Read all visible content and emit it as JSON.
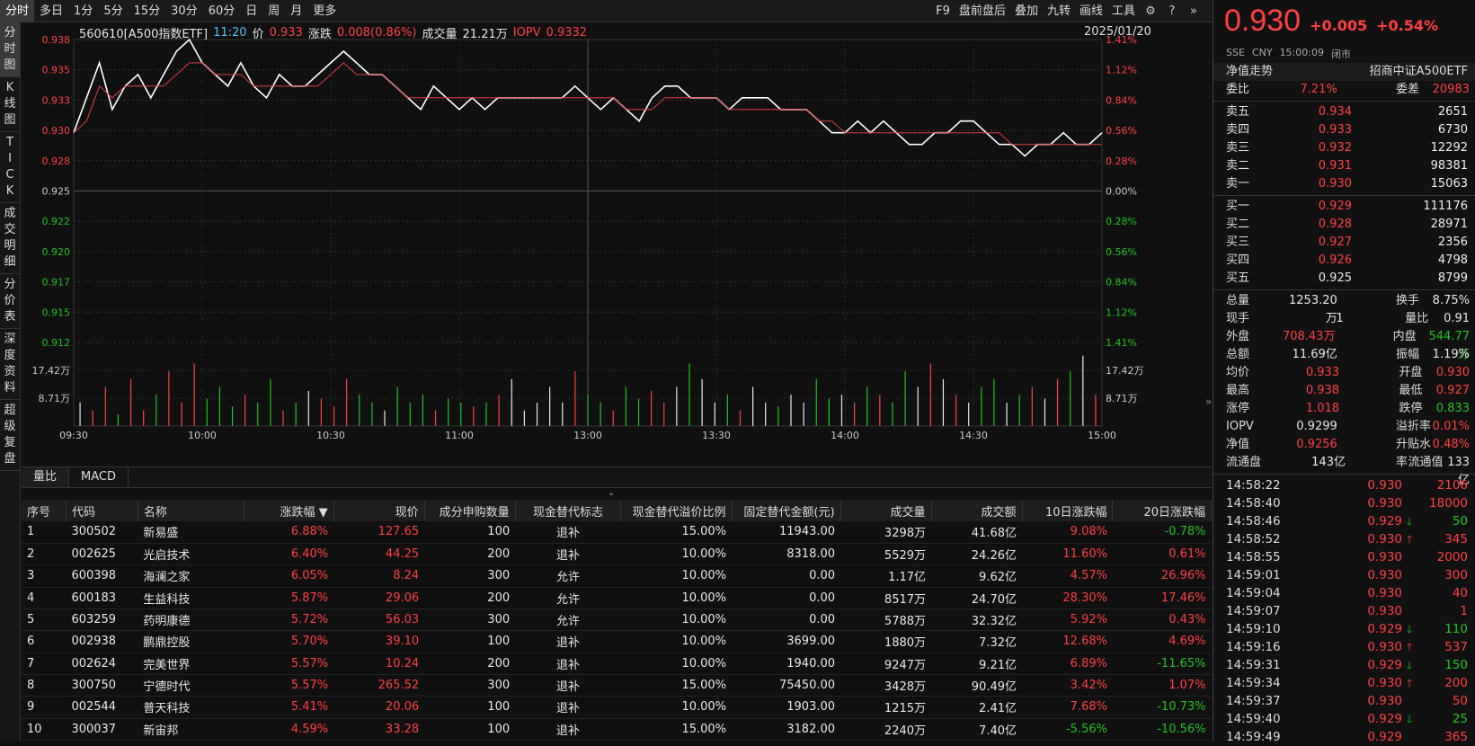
{
  "toolbar": {
    "periods": [
      "分时",
      "多日",
      "1分",
      "5分",
      "15分",
      "30分",
      "60分",
      "日",
      "周",
      "月",
      "更多"
    ],
    "tools": [
      "F9",
      "盘前盘后",
      "叠加",
      "九转",
      "画线",
      "工具"
    ]
  },
  "side_tabs": [
    "分时图",
    "K线图",
    "TICK",
    "成交明细",
    "分价表",
    "深度资料",
    "超级复盘"
  ],
  "info": {
    "code": "560610[A500指数ETF]",
    "time": "11:20",
    "price_label": "价",
    "price": "0.933",
    "chg_label": "涨跌",
    "chg": "0.008(0.86%)",
    "vol_label": "成交量",
    "vol": "21.21万",
    "iopv_label": "IOPV",
    "iopv": "0.9332",
    "date": "2025/01/20"
  },
  "chart_data": {
    "type": "line",
    "title": "",
    "xlabel": "",
    "ylabel": "",
    "price_ticks": [
      "0.938",
      "0.935",
      "0.933",
      "0.930",
      "0.928",
      "0.925",
      "0.922",
      "0.920",
      "0.917",
      "0.915",
      "0.912"
    ],
    "pct_ticks": [
      "1.41%",
      "1.12%",
      "0.84%",
      "0.56%",
      "0.28%",
      "0.00%",
      "0.28%",
      "0.56%",
      "0.84%",
      "1.12%",
      "1.41%"
    ],
    "vol_ticks": [
      "17.42万",
      "8.71万"
    ],
    "x_ticks": [
      "09:30",
      "10:00",
      "10:30",
      "11:00",
      "13:00",
      "13:30",
      "14:00",
      "14:30",
      "15:00"
    ],
    "ylim": [
      0.912,
      0.938
    ],
    "prev_close": 0.925,
    "series": [
      {
        "values": [
          0.93,
          0.933,
          0.936,
          0.932,
          0.934,
          0.935,
          0.933,
          0.935,
          0.937,
          0.938,
          0.936,
          0.935,
          0.934,
          0.936,
          0.934,
          0.933,
          0.935,
          0.934,
          0.934,
          0.935,
          0.936,
          0.937,
          0.936,
          0.935,
          0.935,
          0.934,
          0.933,
          0.932,
          0.934,
          0.933,
          0.932,
          0.933,
          0.932,
          0.933,
          0.933,
          0.933,
          0.933,
          0.933,
          0.933,
          0.934,
          0.933,
          0.932,
          0.933,
          0.932,
          0.931,
          0.933,
          0.934,
          0.934,
          0.933,
          0.933,
          0.933,
          0.932,
          0.933,
          0.933,
          0.933,
          0.932,
          0.932,
          0.932,
          0.931,
          0.93,
          0.93,
          0.931,
          0.93,
          0.931,
          0.93,
          0.929,
          0.929,
          0.93,
          0.93,
          0.931,
          0.931,
          0.93,
          0.929,
          0.929,
          0.928,
          0.929,
          0.929,
          0.93,
          0.929,
          0.929,
          0.93
        ]
      },
      {
        "values": [
          0.93,
          0.931,
          0.934,
          0.933,
          0.934,
          0.934,
          0.934,
          0.934,
          0.935,
          0.936,
          0.936,
          0.935,
          0.935,
          0.935,
          0.934,
          0.934,
          0.934,
          0.934,
          0.934,
          0.934,
          0.935,
          0.936,
          0.935,
          0.935,
          0.935,
          0.934,
          0.933,
          0.933,
          0.933,
          0.933,
          0.933,
          0.933,
          0.933,
          0.933,
          0.933,
          0.933,
          0.933,
          0.933,
          0.933,
          0.933,
          0.933,
          0.933,
          0.933,
          0.932,
          0.932,
          0.932,
          0.933,
          0.933,
          0.933,
          0.933,
          0.933,
          0.932,
          0.932,
          0.932,
          0.932,
          0.932,
          0.932,
          0.932,
          0.931,
          0.931,
          0.93,
          0.93,
          0.93,
          0.93,
          0.93,
          0.93,
          0.93,
          0.93,
          0.93,
          0.93,
          0.93,
          0.93,
          0.93,
          0.929,
          0.929,
          0.929,
          0.929,
          0.929,
          0.929,
          0.929,
          0.929
        ]
      }
    ],
    "volumes": [
      0.3,
      0.2,
      0.5,
      0.15,
      0.6,
      0.2,
      0.4,
      0.7,
      0.3,
      0.8,
      0.35,
      0.5,
      0.25,
      0.4,
      0.3,
      0.6,
      0.2,
      0.3,
      0.45,
      0.35,
      0.25,
      0.6,
      0.4,
      0.3,
      0.2,
      0.5,
      0.3,
      0.4,
      0.2,
      0.35,
      0.3,
      0.25,
      0.3,
      0.4,
      0.6,
      0.2,
      0.3,
      0.5,
      0.3,
      0.7,
      0.4,
      0.3,
      0.2,
      0.5,
      0.35,
      0.45,
      0.3,
      0.5,
      0.8,
      0.6,
      0.3,
      0.4,
      0.2,
      0.5,
      0.3,
      0.25,
      0.4,
      0.3,
      0.6,
      0.35,
      0.4,
      0.3,
      0.5,
      0.4,
      0.3,
      0.7,
      0.5,
      0.8,
      0.6,
      0.4,
      0.3,
      0.5,
      0.6,
      0.3,
      0.4,
      0.5,
      0.35,
      0.6,
      0.7,
      0.9,
      0.4
    ]
  },
  "indicator_tabs": [
    "量比",
    "MACD"
  ],
  "table": {
    "headers": [
      "序号",
      "代码",
      "名称",
      "涨跌幅 ▼",
      "现价",
      "成分申购数量",
      "现金替代标志",
      "现金替代溢价比例",
      "固定替代金额(元)",
      "成交量",
      "成交额",
      "10日涨跌幅",
      "20日涨跌幅"
    ],
    "rows": [
      [
        "1",
        "300502",
        "新易盛",
        "6.88%",
        "127.65",
        "100",
        "退补",
        "15.00%",
        "11943.00",
        "3298万",
        "41.68亿",
        "9.08%",
        "-0.78%"
      ],
      [
        "2",
        "002625",
        "光启技术",
        "6.40%",
        "44.25",
        "200",
        "退补",
        "10.00%",
        "8318.00",
        "5529万",
        "24.26亿",
        "11.60%",
        "0.61%"
      ],
      [
        "3",
        "600398",
        "海澜之家",
        "6.05%",
        "8.24",
        "300",
        "允许",
        "10.00%",
        "0.00",
        "1.17亿",
        "9.62亿",
        "4.57%",
        "26.96%"
      ],
      [
        "4",
        "600183",
        "生益科技",
        "5.87%",
        "29.06",
        "200",
        "允许",
        "10.00%",
        "0.00",
        "8517万",
        "24.70亿",
        "28.30%",
        "17.46%"
      ],
      [
        "5",
        "603259",
        "药明康德",
        "5.72%",
        "56.03",
        "300",
        "允许",
        "10.00%",
        "0.00",
        "5788万",
        "32.32亿",
        "5.92%",
        "0.43%"
      ],
      [
        "6",
        "002938",
        "鹏鼎控股",
        "5.70%",
        "39.10",
        "100",
        "退补",
        "10.00%",
        "3699.00",
        "1880万",
        "7.32亿",
        "12.68%",
        "4.69%"
      ],
      [
        "7",
        "002624",
        "完美世界",
        "5.57%",
        "10.24",
        "200",
        "退补",
        "10.00%",
        "1940.00",
        "9247万",
        "9.21亿",
        "6.89%",
        "-11.65%"
      ],
      [
        "8",
        "300750",
        "宁德时代",
        "5.57%",
        "265.52",
        "300",
        "退补",
        "15.00%",
        "75450.00",
        "3428万",
        "90.49亿",
        "3.42%",
        "1.07%"
      ],
      [
        "9",
        "002544",
        "普天科技",
        "5.41%",
        "20.06",
        "100",
        "退补",
        "10.00%",
        "1903.00",
        "1215万",
        "2.41亿",
        "7.68%",
        "-10.73%"
      ],
      [
        "10",
        "300037",
        "新宙邦",
        "4.59%",
        "33.28",
        "100",
        "退补",
        "15.00%",
        "3182.00",
        "2240万",
        "7.40亿",
        "-5.56%",
        "-10.56%"
      ]
    ]
  },
  "quote": {
    "price": "0.930",
    "chg": "+0.005",
    "pct": "+0.54%",
    "exch": "SSE",
    "ccy": "CNY",
    "time": "15:00:09",
    "status": "闭市",
    "nav_trend": "净值走势",
    "name": "招商中证A500ETF",
    "weibi_label": "委比",
    "weibi": "7.21%",
    "weicha_label": "委差",
    "weicha": "20983",
    "asks": [
      [
        "卖五",
        "0.934",
        "2651"
      ],
      [
        "卖四",
        "0.933",
        "6730"
      ],
      [
        "卖三",
        "0.932",
        "12292"
      ],
      [
        "卖二",
        "0.931",
        "98381"
      ],
      [
        "卖一",
        "0.930",
        "15063"
      ]
    ],
    "bids": [
      [
        "买一",
        "0.929",
        "111176"
      ],
      [
        "买二",
        "0.928",
        "28971"
      ],
      [
        "买三",
        "0.927",
        "2356"
      ],
      [
        "买四",
        "0.926",
        "4798"
      ],
      [
        "买五",
        "0.925",
        "8799"
      ]
    ],
    "stats": [
      [
        "总量",
        "1253.20万",
        "white",
        "换手",
        "8.75%",
        "white"
      ],
      [
        "现手",
        "1",
        "white",
        "量比",
        "0.91",
        "white"
      ],
      [
        "外盘",
        "708.43万",
        "red",
        "内盘",
        "544.77万",
        "green"
      ],
      [
        "总额",
        "11.69亿",
        "white",
        "振幅",
        "1.19%",
        "white"
      ],
      [
        "均价",
        "0.933",
        "red",
        "开盘",
        "0.930",
        "red"
      ],
      [
        "最高",
        "0.938",
        "red",
        "最低",
        "0.927",
        "red"
      ],
      [
        "涨停",
        "1.018",
        "red",
        "跌停",
        "0.833",
        "green"
      ],
      [
        "IOPV",
        "0.9299",
        "white",
        "溢折率",
        "0.01%",
        "red"
      ],
      [
        "净值",
        "0.9256",
        "red",
        "升贴水率",
        "0.48%",
        "red"
      ],
      [
        "流通盘",
        "143亿",
        "white",
        "流通值",
        "133亿",
        "white"
      ]
    ],
    "ticks": [
      [
        "14:58:22",
        "0.930",
        "",
        "2106",
        "red"
      ],
      [
        "14:58:40",
        "0.930",
        "",
        "18000",
        "red"
      ],
      [
        "14:58:46",
        "0.929",
        "down",
        "50",
        "green"
      ],
      [
        "14:58:52",
        "0.930",
        "up",
        "345",
        "red"
      ],
      [
        "14:58:55",
        "0.930",
        "",
        "2000",
        "red"
      ],
      [
        "14:59:01",
        "0.930",
        "",
        "300",
        "red"
      ],
      [
        "14:59:04",
        "0.930",
        "",
        "40",
        "red"
      ],
      [
        "14:59:07",
        "0.930",
        "",
        "1",
        "red"
      ],
      [
        "14:59:10",
        "0.929",
        "down",
        "110",
        "green"
      ],
      [
        "14:59:16",
        "0.930",
        "up",
        "537",
        "red"
      ],
      [
        "14:59:31",
        "0.929",
        "down",
        "150",
        "green"
      ],
      [
        "14:59:34",
        "0.930",
        "up",
        "200",
        "red"
      ],
      [
        "14:59:37",
        "0.930",
        "",
        "50",
        "red"
      ],
      [
        "14:59:40",
        "0.929",
        "down",
        "25",
        "green"
      ],
      [
        "14:59:49",
        "0.929",
        "",
        "365",
        "red"
      ]
    ]
  }
}
